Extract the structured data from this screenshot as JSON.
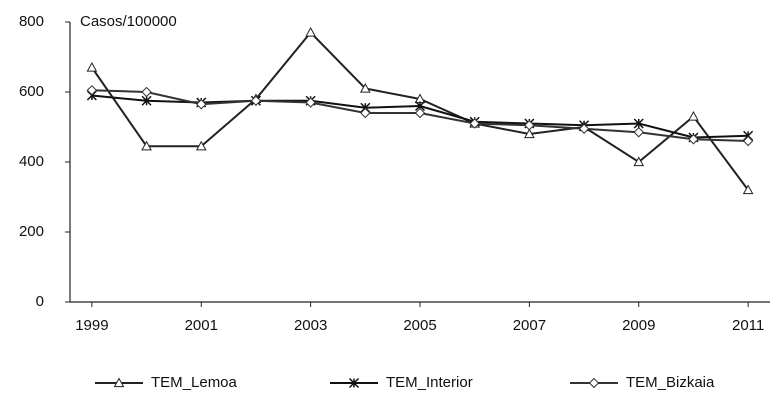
{
  "chart_data": {
    "type": "line",
    "y_label": "Casos/100000",
    "x": [
      1999,
      2000,
      2001,
      2002,
      2003,
      2004,
      2005,
      2006,
      2007,
      2008,
      2009,
      2010,
      2011
    ],
    "xlim": [
      1998.6,
      2011.4
    ],
    "xticks": [
      1999,
      2001,
      2003,
      2005,
      2007,
      2009,
      2011
    ],
    "ylim": [
      0,
      800
    ],
    "yticks": [
      0,
      200,
      400,
      600,
      800
    ],
    "grid": false,
    "legend": "bottom",
    "series": [
      {
        "name": "TEM_Lemoa",
        "color": "#222222",
        "marker": "triangle",
        "values": [
          670,
          445,
          445,
          580,
          770,
          610,
          580,
          510,
          480,
          500,
          400,
          530,
          320
        ]
      },
      {
        "name": "TEM_Interior",
        "color": "#111111",
        "marker": "star",
        "values": [
          590,
          575,
          570,
          575,
          575,
          555,
          560,
          515,
          510,
          505,
          510,
          470,
          475
        ]
      },
      {
        "name": "TEM_Bizkaia",
        "color": "#333333",
        "marker": "diamond",
        "values": [
          605,
          600,
          565,
          575,
          570,
          540,
          540,
          510,
          505,
          495,
          485,
          465,
          460
        ]
      }
    ]
  }
}
